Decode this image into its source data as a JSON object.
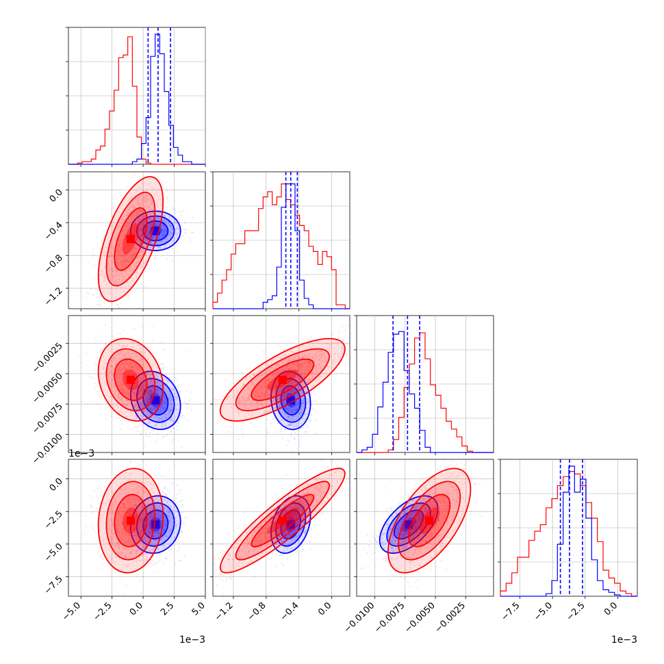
{
  "figure": {
    "colors": {
      "blue": "#0000ff",
      "red": "#ff0000",
      "grid": "#b0b0b0"
    }
  },
  "chart_data": {
    "type": "corner",
    "parameters": [
      {
        "range": [
          -6.0,
          5.0
        ],
        "ticks": [
          -5.0,
          -2.5,
          0.0,
          2.5,
          5.0
        ],
        "tick_labels": [
          "−5.0",
          "−2.5",
          "0.0",
          "2.5",
          "5.0"
        ],
        "offset_text": "1e−3"
      },
      {
        "range": [
          -1.45,
          0.22
        ],
        "ticks": [
          -1.2,
          -0.8,
          -0.4,
          0.0
        ],
        "tick_labels": [
          "−1.2",
          "−0.8",
          "−0.4",
          "0.0"
        ],
        "offset_text": ""
      },
      {
        "range": [
          -0.0115,
          -0.0002
        ],
        "ticks": [
          -0.01,
          -0.0075,
          -0.005,
          -0.0025
        ],
        "tick_labels": [
          "−0.0100",
          "−0.0075",
          "−0.0050",
          "−0.0025"
        ],
        "offset_text": ""
      },
      {
        "range": [
          -9.0,
          1.5
        ],
        "ticks": [
          -7.5,
          -5.0,
          -2.5,
          0.0
        ],
        "tick_labels": [
          "−7.5",
          "−5.0",
          "−2.5",
          "0.0"
        ],
        "offset_text": "1e−3"
      }
    ],
    "series": [
      {
        "name": "",
        "color": "#0000ff",
        "quantiles": [
          [
            0.4,
            1.2,
            2.2
          ],
          [
            -0.56,
            -0.5,
            -0.42
          ],
          [
            -0.0085,
            -0.0073,
            -0.0063
          ],
          [
            -4.4,
            -3.7,
            -2.7
          ]
        ],
        "means": [
          1.0,
          -0.5,
          -0.0072,
          -3.5
        ],
        "stds": [
          1.0,
          0.12,
          0.0012,
          1.1
        ],
        "hist_range_pad": 0.0
      },
      {
        "name": "",
        "color": "#ff0000",
        "quantiles": [],
        "means": [
          -1.0,
          -0.6,
          -0.0055,
          -3.2
        ],
        "stds": [
          1.3,
          0.38,
          0.0017,
          2.0
        ],
        "hist_range_pad": 0.0
      }
    ],
    "hist_1d": {
      "p0": {
        "blue": [
          0.0,
          0.0,
          0.0,
          0.0,
          0.0,
          0.0,
          0.0,
          0.0,
          0.0,
          0.0,
          0.0,
          0.0,
          0.0,
          0.0,
          0.02,
          0.04,
          0.16,
          0.36,
          0.83,
          1.0,
          0.85,
          0.56,
          0.3,
          0.13,
          0.07,
          0.02,
          0.02,
          0.0,
          0.0,
          0.0
        ],
        "red": [
          0.0,
          0.0,
          0.01,
          0.02,
          0.02,
          0.04,
          0.11,
          0.14,
          0.27,
          0.41,
          0.57,
          0.82,
          0.84,
          0.98,
          0.6,
          0.21,
          0.04,
          0.01,
          0.0,
          0.0,
          0.0,
          0.0,
          0.0,
          0.0,
          0.0,
          0.0,
          0.0,
          0.0,
          0.0,
          0.0
        ]
      },
      "p1": {
        "blue": [
          0.0,
          0.0,
          0.0,
          0.0,
          0.0,
          0.0,
          0.0,
          0.0,
          0.0,
          0.0,
          0.0,
          0.05,
          0.07,
          0.1,
          0.32,
          0.78,
          0.96,
          0.96,
          0.6,
          0.22,
          0.08,
          0.03,
          0.0,
          0.0,
          0.0,
          0.0,
          0.0,
          0.0,
          0.0,
          0.0
        ],
        "red": [
          0.05,
          0.12,
          0.22,
          0.3,
          0.42,
          0.5,
          0.5,
          0.6,
          0.6,
          0.6,
          0.77,
          0.86,
          0.9,
          0.8,
          0.86,
          0.96,
          0.84,
          0.8,
          0.72,
          0.64,
          0.6,
          0.48,
          0.44,
          0.34,
          0.44,
          0.4,
          0.3,
          0.03,
          0.03,
          0.0
        ]
      },
      "p2": {
        "blue": [
          0.0,
          0.02,
          0.04,
          0.14,
          0.35,
          0.54,
          0.77,
          0.91,
          0.93,
          0.63,
          0.45,
          0.34,
          0.17,
          0.04,
          0.0,
          0.0,
          0.0,
          0.0,
          0.0,
          0.0,
          0.0,
          0.0,
          0.0,
          0.0,
          0.0,
          0.0
        ],
        "red": [
          0.0,
          0.0,
          0.0,
          0.0,
          0.0,
          0.0,
          0.02,
          0.1,
          0.27,
          0.5,
          0.68,
          0.88,
          0.92,
          0.72,
          0.52,
          0.44,
          0.34,
          0.24,
          0.18,
          0.12,
          0.05,
          0.01,
          0.0,
          0.0,
          0.0,
          0.0
        ]
      },
      "p3": {
        "blue": [
          0.0,
          0.0,
          0.0,
          0.0,
          0.0,
          0.0,
          0.0,
          0.0,
          0.02,
          0.12,
          0.4,
          0.8,
          1.0,
          0.8,
          0.9,
          0.6,
          0.28,
          0.12,
          0.05,
          0.03,
          0.01,
          0.0,
          0.0,
          0.0
        ],
        "red": [
          0.04,
          0.1,
          0.18,
          0.3,
          0.3,
          0.43,
          0.5,
          0.55,
          0.68,
          0.75,
          0.85,
          0.92,
          0.96,
          0.94,
          0.85,
          0.72,
          0.6,
          0.42,
          0.2,
          0.14,
          0.1,
          0.04,
          0.02,
          0.0
        ]
      }
    }
  }
}
